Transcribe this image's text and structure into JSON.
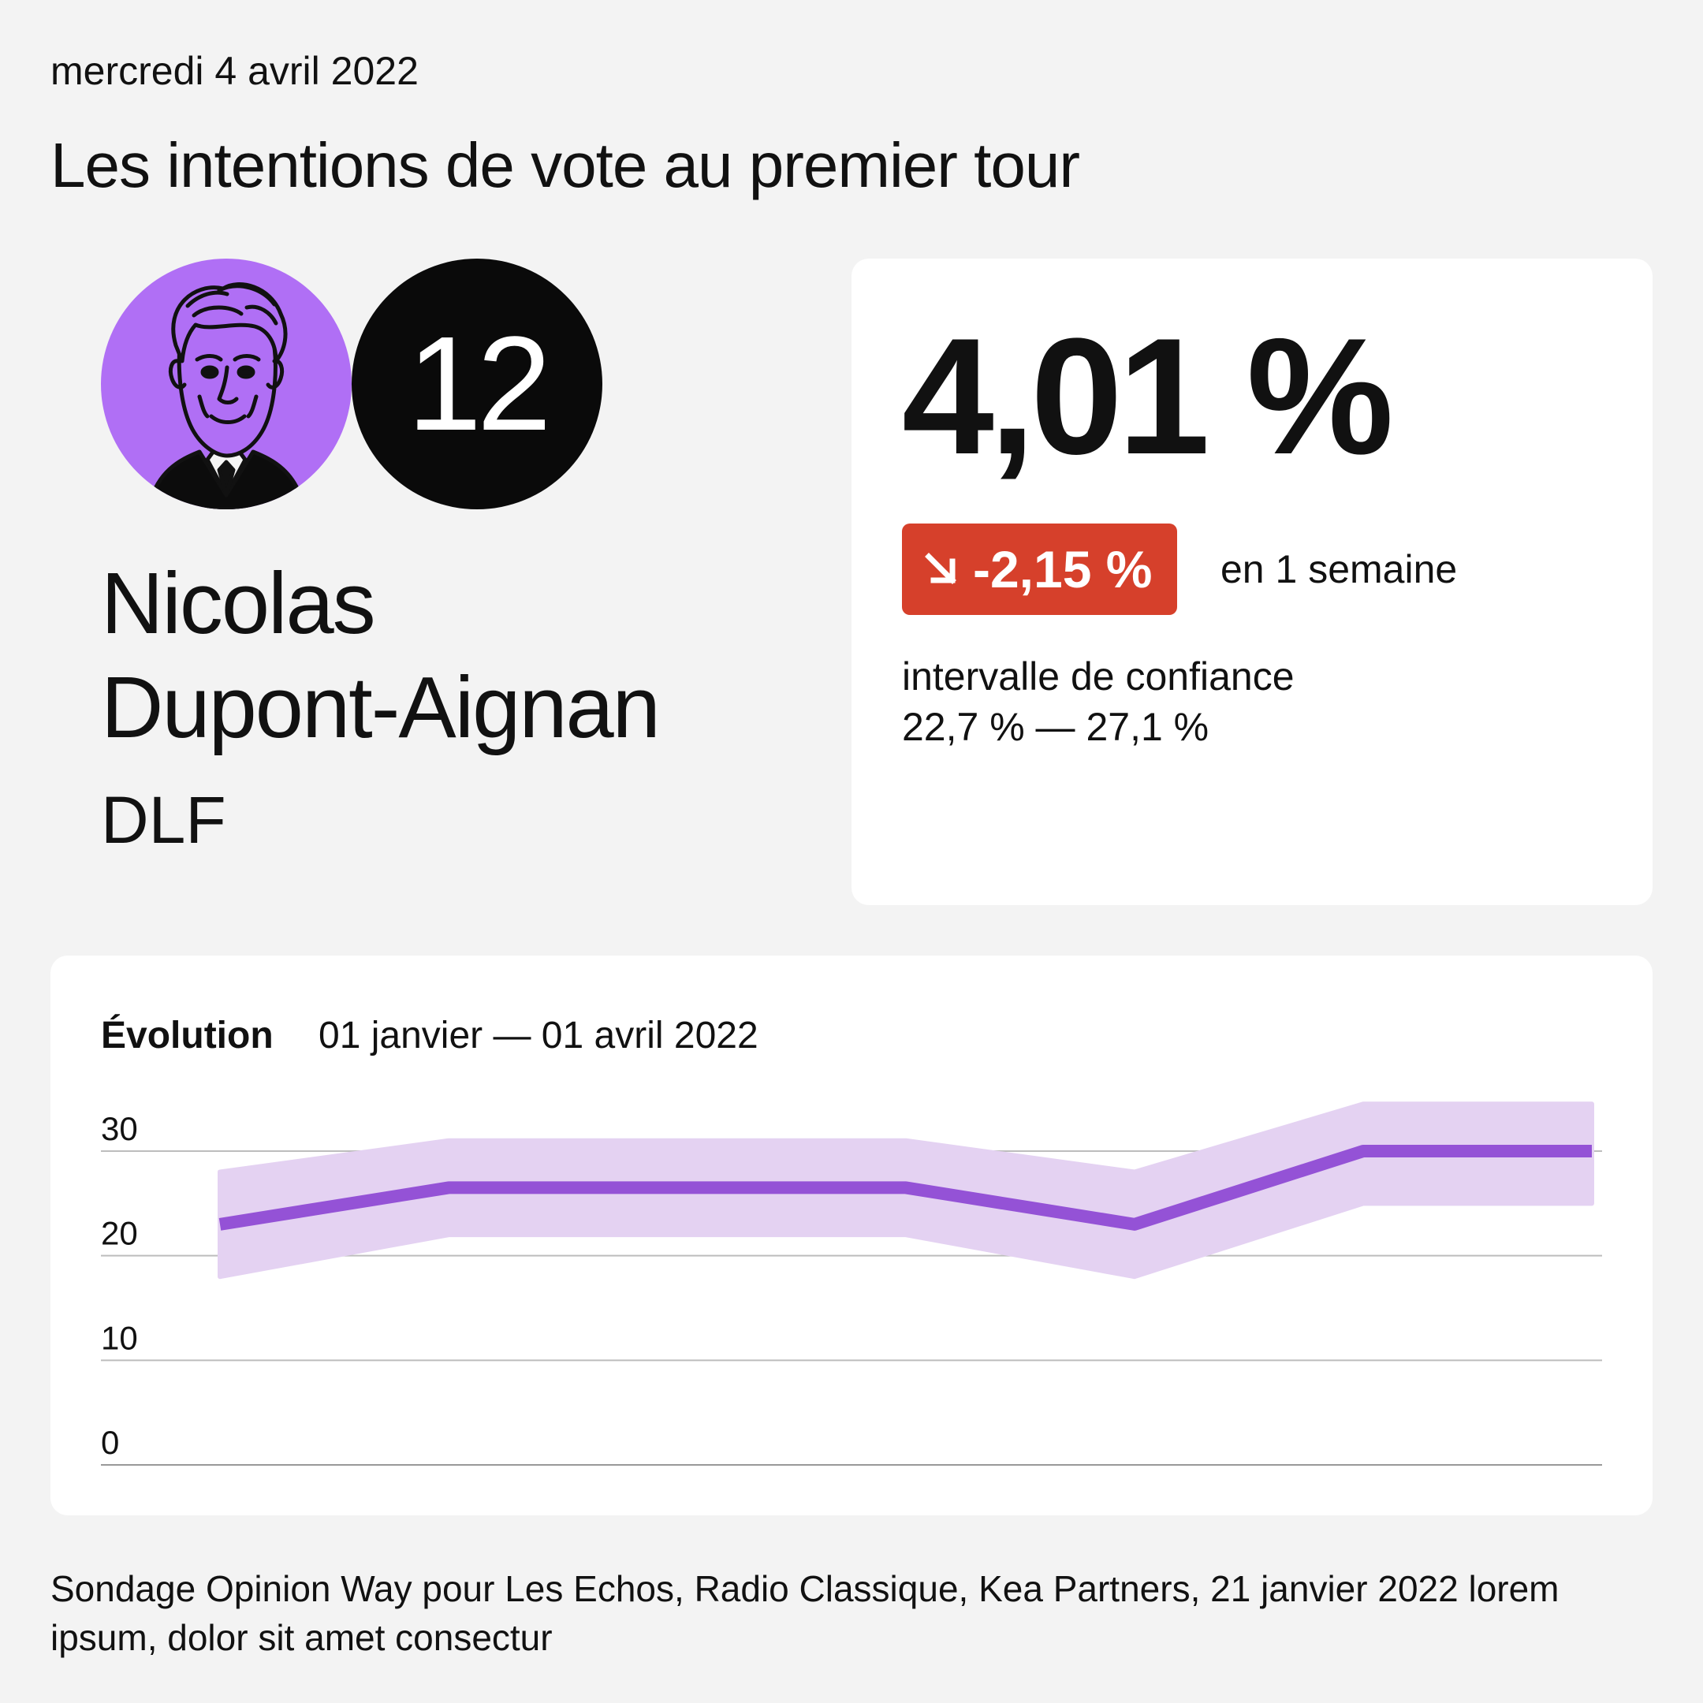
{
  "header": {
    "date": "mercredi 4 avril 2022",
    "title": "Les intentions de vote au premier tour"
  },
  "candidate": {
    "number": "12",
    "name_line1": "Nicolas",
    "name_line2": "Dupont-Aignan",
    "party": "DLF",
    "avatar_icon": "candidate-portrait-icon",
    "accent_color": "#b06ff5"
  },
  "stats": {
    "value": "4,01 %",
    "delta": "-2,15 %",
    "delta_icon": "arrow-down-right-icon",
    "delta_color": "#d6402b",
    "delta_caption": "en 1 semaine",
    "ci_label": "intervalle de confiance",
    "ci_value": "22,7 % — 27,1 %"
  },
  "chart_data": {
    "type": "line",
    "title": "Évolution",
    "subtitle": "01 janvier — 01 avril 2022",
    "ylim": [
      0,
      30
    ],
    "yticks": [
      0,
      10,
      20,
      30
    ],
    "grid": true,
    "line_color": "#9452d6",
    "band_color": "#e4d2f2",
    "points": [
      {
        "x": 0,
        "y": 23,
        "low": 18,
        "high": 28
      },
      {
        "x": 1,
        "y": 26.5,
        "low": 22,
        "high": 31
      },
      {
        "x": 3,
        "y": 26.5,
        "low": 22,
        "high": 31
      },
      {
        "x": 4,
        "y": 23,
        "low": 18,
        "high": 28
      },
      {
        "x": 5,
        "y": 30,
        "low": 25,
        "high": 34.5
      },
      {
        "x": 6,
        "y": 30,
        "low": 25,
        "high": 34.5
      }
    ]
  },
  "footer": {
    "source": "Sondage Opinion Way pour Les Echos, Radio Classique, Kea Partners, 21 janvier 2022 lorem ipsum, dolor sit amet consectur"
  }
}
